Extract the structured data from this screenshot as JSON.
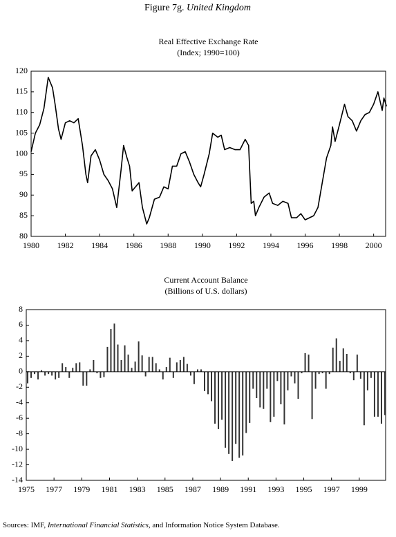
{
  "figure_title": {
    "label": "Figure 7g.",
    "country": "United Kingdom"
  },
  "source": {
    "prefix": "Sources: IMF,",
    "publication": "International Financial Statistics",
    "suffix": ", and Information Notice System Database."
  },
  "chart_data": [
    {
      "type": "line",
      "title": "Real Effective Exchange Rate",
      "subtitle": "(Index; 1990=100)",
      "color": "#000000",
      "x": [
        1980.0,
        1980.25,
        1980.5,
        1980.75,
        1981.0,
        1981.25,
        1981.4,
        1981.6,
        1981.75,
        1982.0,
        1982.25,
        1982.5,
        1982.75,
        1983.0,
        1983.2,
        1983.3,
        1983.5,
        1983.75,
        1984.0,
        1984.25,
        1984.5,
        1984.75,
        1985.0,
        1985.25,
        1985.4,
        1985.6,
        1985.75,
        1985.9,
        1986.1,
        1986.3,
        1986.5,
        1986.75,
        1986.9,
        1987.2,
        1987.5,
        1987.75,
        1988.0,
        1988.25,
        1988.5,
        1988.75,
        1989.0,
        1989.25,
        1989.5,
        1989.75,
        1989.9,
        1990.1,
        1990.4,
        1990.6,
        1990.9,
        1991.1,
        1991.3,
        1991.6,
        1991.9,
        1992.2,
        1992.5,
        1992.7,
        1992.85,
        1993.0,
        1993.1,
        1993.3,
        1993.6,
        1993.9,
        1994.1,
        1994.4,
        1994.7,
        1995.0,
        1995.2,
        1995.5,
        1995.75,
        1996.0,
        1996.25,
        1996.5,
        1996.75,
        1997.0,
        1997.25,
        1997.5,
        1997.6,
        1997.75,
        1998.0,
        1998.3,
        1998.5,
        1998.75,
        1999.0,
        1999.25,
        1999.5,
        1999.75,
        2000.0,
        2000.25,
        2000.5,
        2000.6,
        2000.75
      ],
      "values": [
        100.5,
        105,
        107,
        111,
        118.5,
        116,
        112,
        106,
        103.5,
        107.5,
        108,
        107.5,
        108.5,
        102,
        95,
        93,
        99.5,
        101,
        98.5,
        95,
        93.5,
        91.5,
        87,
        96,
        102,
        99,
        97,
        91,
        92,
        93,
        87,
        83,
        84.5,
        89,
        89.5,
        92,
        91.5,
        97,
        97,
        100,
        100.5,
        98,
        95,
        93,
        92,
        95,
        100,
        105,
        104,
        104.5,
        101,
        101.5,
        101,
        101,
        103.5,
        102,
        88,
        88.5,
        85,
        87,
        89.5,
        90.5,
        88,
        87.5,
        88.5,
        88,
        84.5,
        84.5,
        85.5,
        84,
        84.5,
        85,
        87,
        93,
        99,
        102,
        106.5,
        103,
        107,
        112,
        109,
        108,
        105.5,
        108,
        109.5,
        110,
        112,
        115,
        110.5,
        113.5,
        111.5
      ],
      "xlim": [
        1980,
        2000.7
      ],
      "xticks": [
        1980,
        1982,
        1984,
        1986,
        1988,
        1990,
        1992,
        1994,
        1996,
        1998,
        2000
      ],
      "ylim": [
        80,
        120
      ],
      "yticks": [
        80,
        85,
        90,
        95,
        100,
        105,
        110,
        115,
        120
      ]
    },
    {
      "type": "bar",
      "title": "Current Account Balance",
      "subtitle": "(Billions of U.S. dollars)",
      "color": "#333333",
      "x": [
        1975,
        1975.25,
        1975.5,
        1975.75,
        1976,
        1976.25,
        1976.5,
        1976.75,
        1977,
        1977.25,
        1977.5,
        1977.75,
        1978,
        1978.25,
        1978.5,
        1978.75,
        1979,
        1979.25,
        1979.5,
        1979.75,
        1980,
        1980.25,
        1980.5,
        1980.75,
        1981,
        1981.25,
        1981.5,
        1981.75,
        1982,
        1982.25,
        1982.5,
        1982.75,
        1983,
        1983.25,
        1983.5,
        1983.75,
        1984,
        1984.25,
        1984.5,
        1984.75,
        1985,
        1985.25,
        1985.5,
        1985.75,
        1986,
        1986.25,
        1986.5,
        1986.75,
        1987,
        1987.25,
        1987.5,
        1987.75,
        1988,
        1988.25,
        1988.5,
        1988.75,
        1989,
        1989.25,
        1989.5,
        1989.75,
        1990,
        1990.25,
        1990.5,
        1990.75,
        1991,
        1991.25,
        1991.5,
        1991.75,
        1992,
        1992.25,
        1992.5,
        1992.75,
        1993,
        1993.25,
        1993.5,
        1993.75,
        1994,
        1994.25,
        1994.5,
        1994.75,
        1995,
        1995.25,
        1995.5,
        1995.75,
        1996,
        1996.25,
        1996.5,
        1996.75,
        1997,
        1997.25,
        1997.5,
        1997.75,
        1998,
        1998.25,
        1998.5,
        1998.75,
        1999,
        1999.25,
        1999.5,
        1999.75,
        2000,
        2000.25,
        2000.5,
        2000.75
      ],
      "values": [
        -1.5,
        -0.8,
        -0.3,
        -1.0,
        0.2,
        -0.5,
        -0.3,
        -0.5,
        -1.0,
        -0.8,
        1.1,
        0.6,
        -0.8,
        0.5,
        1.1,
        1.2,
        -1.8,
        -1.8,
        0.3,
        1.5,
        -0.2,
        -0.8,
        -0.7,
        3.2,
        5.5,
        6.2,
        3.5,
        1.5,
        3.4,
        2.2,
        0.5,
        1.3,
        3.9,
        2.1,
        -0.6,
        1.9,
        1.9,
        1.1,
        0.3,
        -1.0,
        0.6,
        1.8,
        -0.8,
        1.2,
        1.5,
        1.9,
        1.0,
        -0.5,
        -1.6,
        0.3,
        0.3,
        -2.5,
        -2.9,
        -3.8,
        -6.7,
        -7.4,
        -6.2,
        -9.8,
        -10.6,
        -11.5,
        -9.3,
        -11.1,
        -10.8,
        -7.9,
        -6.6,
        -2.2,
        -3.4,
        -4.6,
        -4.8,
        -2.2,
        -6.5,
        -5.8,
        -1.2,
        -4.2,
        -6.8,
        -2.4,
        -0.6,
        -1.5,
        -3.5,
        -0.2,
        2.4,
        2.2,
        -6.1,
        -2.2,
        -0.3,
        -0.2,
        -2.2,
        -0.3,
        3.1,
        4.3,
        1.4,
        3.0,
        2.3,
        -0.2,
        -1.1,
        2.2,
        -0.9,
        -6.9,
        -2.4,
        -0.8,
        -5.8,
        -5.8,
        -6.7,
        -5.6
      ],
      "xlim": [
        1975,
        2000.9
      ],
      "xticks": [
        1975,
        1977,
        1979,
        1981,
        1983,
        1985,
        1987,
        1989,
        1991,
        1993,
        1995,
        1997,
        1999
      ],
      "ylim": [
        -14,
        8
      ],
      "yticks": [
        -14,
        -12,
        -10,
        -8,
        -6,
        -4,
        -2,
        0,
        2,
        4,
        6,
        8
      ]
    }
  ]
}
